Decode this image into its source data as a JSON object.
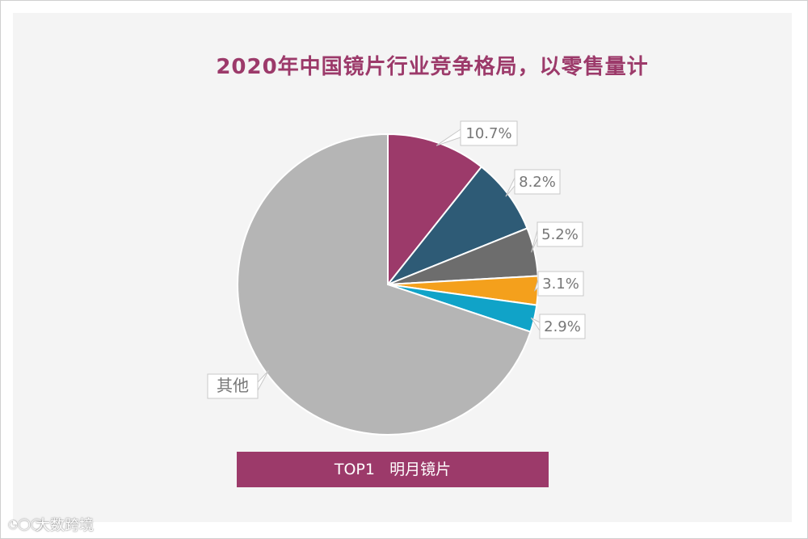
{
  "title": "2020年中国镜片行业竞争格局，以零售量计",
  "chart_data": {
    "type": "pie",
    "title": "2020年中国镜片行业竞争格局，以零售量计",
    "slices": [
      {
        "label": "",
        "value": 10.7,
        "display": "10.7%",
        "color": "#9c3a6a"
      },
      {
        "label": "",
        "value": 8.2,
        "display": "8.2%",
        "color": "#2e5b76"
      },
      {
        "label": "",
        "value": 5.2,
        "display": "5.2%",
        "color": "#6d6d6d"
      },
      {
        "label": "",
        "value": 3.1,
        "display": "3.1%",
        "color": "#f4a01c"
      },
      {
        "label": "",
        "value": 2.9,
        "display": "2.9%",
        "color": "#10a3c8"
      },
      {
        "label": "其他",
        "value": 69.9,
        "display": "其他",
        "color": "#b5b5b5"
      }
    ],
    "start_angle": "12 o'clock, clockwise",
    "legend": "none"
  },
  "banner": {
    "text": "TOP1   明月镜片"
  },
  "watermark": {
    "icon": "logo-icon",
    "text": "大数跨境"
  }
}
